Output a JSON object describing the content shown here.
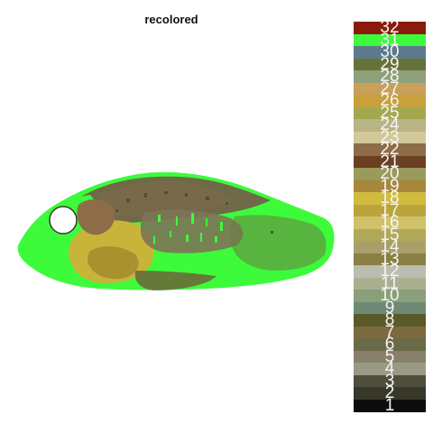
{
  "title": "recolored",
  "image": {
    "description_colors": {
      "background": "#ffffff",
      "green": "#3dfb3b",
      "dark_olive": "#6e6a48",
      "brown": "#6f5a3a",
      "yellow": "#c9b43a",
      "dark_yellow": "#a8912f",
      "gray_brown": "#7c7457",
      "eye": "#ffffff"
    }
  },
  "legend": {
    "items": [
      {
        "label": "32",
        "color": "#8b1a0a"
      },
      {
        "label": "31",
        "color": "#3dfb3b"
      },
      {
        "label": "30",
        "color": "#5d7a8c"
      },
      {
        "label": "29",
        "color": "#65733a"
      },
      {
        "label": "28",
        "color": "#8fa07a"
      },
      {
        "label": "27",
        "color": "#c9a05a"
      },
      {
        "label": "26",
        "color": "#c8a03c"
      },
      {
        "label": "25",
        "color": "#a2a850"
      },
      {
        "label": "24",
        "color": "#b8b486"
      },
      {
        "label": "23",
        "color": "#d2c89a"
      },
      {
        "label": "22",
        "color": "#8c6d48"
      },
      {
        "label": "21",
        "color": "#6b3f24"
      },
      {
        "label": "20",
        "color": "#9a9a5a"
      },
      {
        "label": "19",
        "color": "#a8873a"
      },
      {
        "label": "18",
        "color": "#d1bb3e"
      },
      {
        "label": "17",
        "color": "#bba43c"
      },
      {
        "label": "16",
        "color": "#d0c26a"
      },
      {
        "label": "15",
        "color": "#b2a85a"
      },
      {
        "label": "14",
        "color": "#aa9f68"
      },
      {
        "label": "13",
        "color": "#8a7f44"
      },
      {
        "label": "12",
        "color": "#bcbcb0"
      },
      {
        "label": "11",
        "color": "#a8b090"
      },
      {
        "label": "10",
        "color": "#8aa07a"
      },
      {
        "label": "9",
        "color": "#6f8a74"
      },
      {
        "label": "8",
        "color": "#5a5a2a"
      },
      {
        "label": "7",
        "color": "#7a6a3e"
      },
      {
        "label": "6",
        "color": "#6a6a48"
      },
      {
        "label": "5",
        "color": "#88806a"
      },
      {
        "label": "4",
        "color": "#9a9a84"
      },
      {
        "label": "3",
        "color": "#4e4e3c"
      },
      {
        "label": "2",
        "color": "#38382a"
      },
      {
        "label": "1",
        "color": "#0c0c0c"
      }
    ]
  }
}
